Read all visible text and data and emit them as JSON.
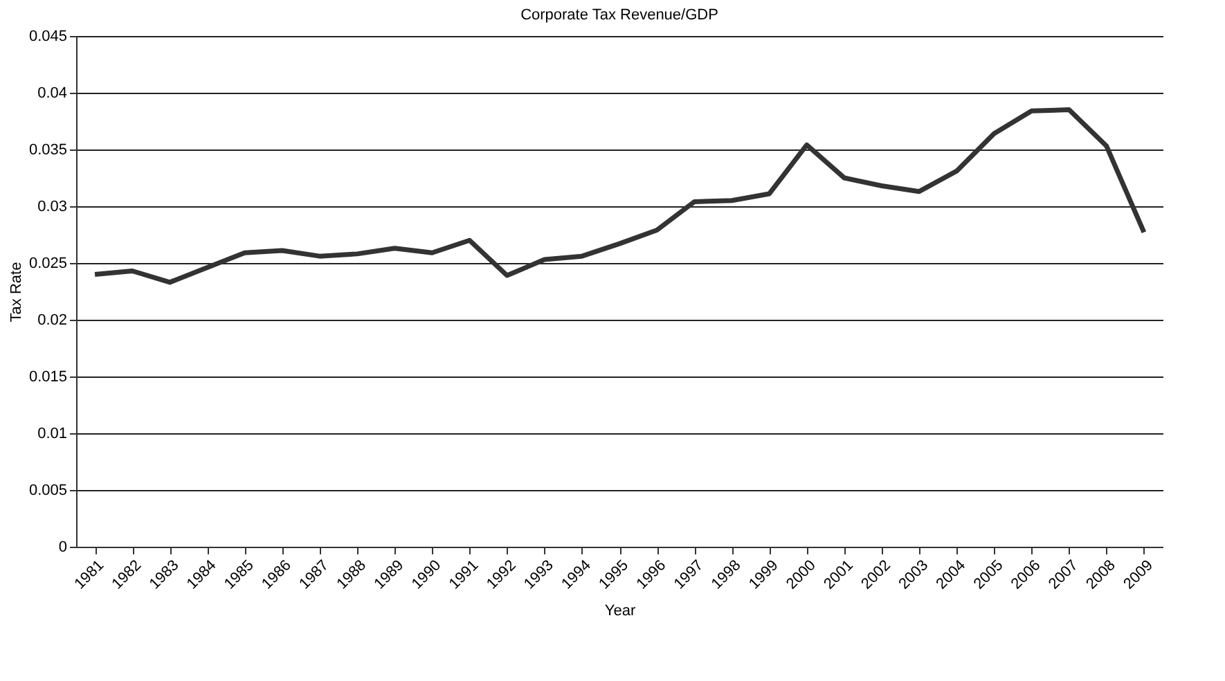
{
  "chart_data": {
    "type": "line",
    "title": "Corporate Tax Revenue/GDP",
    "xlabel": "Year",
    "ylabel": "Tax Rate",
    "categories": [
      "1981",
      "1982",
      "1983",
      "1984",
      "1985",
      "1986",
      "1987",
      "1988",
      "1989",
      "1990",
      "1991",
      "1992",
      "1993",
      "1994",
      "1995",
      "1996",
      "1997",
      "1998",
      "1999",
      "2000",
      "2001",
      "2002",
      "2003",
      "2004",
      "2005",
      "2006",
      "2007",
      "2008",
      "2009"
    ],
    "series": [
      {
        "color": "#333333",
        "values": [
          0.024,
          0.0243,
          0.0233,
          0.0246,
          0.0259,
          0.0261,
          0.0256,
          0.0258,
          0.0263,
          0.0259,
          0.027,
          0.0239,
          0.0253,
          0.0256,
          0.0267,
          0.0279,
          0.0304,
          0.0305,
          0.0311,
          0.0354,
          0.0325,
          0.0318,
          0.0313,
          0.0331,
          0.0364,
          0.0384,
          0.0385,
          0.0353,
          0.0277
        ]
      }
    ],
    "ylim": [
      0,
      0.045
    ],
    "yticks": [
      0,
      0.005,
      0.01,
      0.015,
      0.02,
      0.025,
      0.03,
      0.035,
      0.04,
      0.045
    ],
    "grid": "y",
    "marker": "none",
    "line_style": "solid",
    "legend": false
  }
}
